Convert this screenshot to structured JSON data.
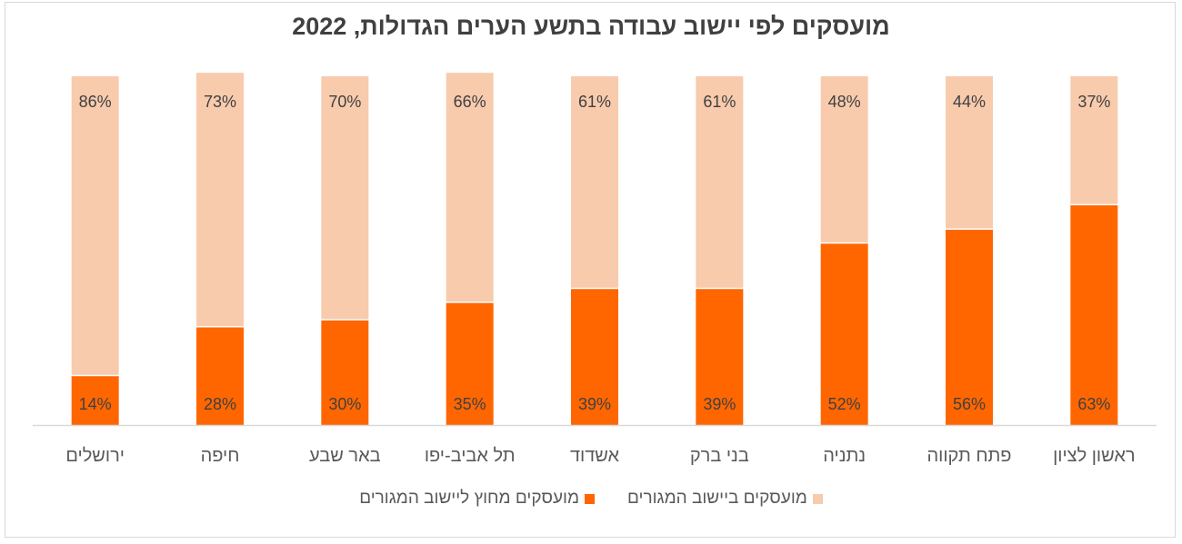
{
  "chart_data": {
    "type": "bar",
    "stacked": true,
    "title": "מועסקים לפי יישוב עבודה בתשע הערים הגדולות, 2022",
    "categories": [
      "ירושלים",
      "חיפה",
      "באר שבע",
      "תל אביב-יפו",
      "אשדוד",
      "בני ברק",
      "נתניה",
      "פתח תקווה",
      "ראשון לציון"
    ],
    "series": [
      {
        "name": "מועסקים מחוץ ליישוב המגורים",
        "color": "#ff6600",
        "values": [
          14,
          28,
          30,
          35,
          39,
          39,
          52,
          56,
          63
        ]
      },
      {
        "name": "מועסקים ביישוב המגורים",
        "color": "#f8cbad",
        "values": [
          86,
          73,
          70,
          66,
          61,
          61,
          48,
          44,
          37
        ]
      }
    ],
    "ylim": [
      0,
      100
    ],
    "value_format": "percent",
    "grid": false,
    "legend": "bottom"
  }
}
